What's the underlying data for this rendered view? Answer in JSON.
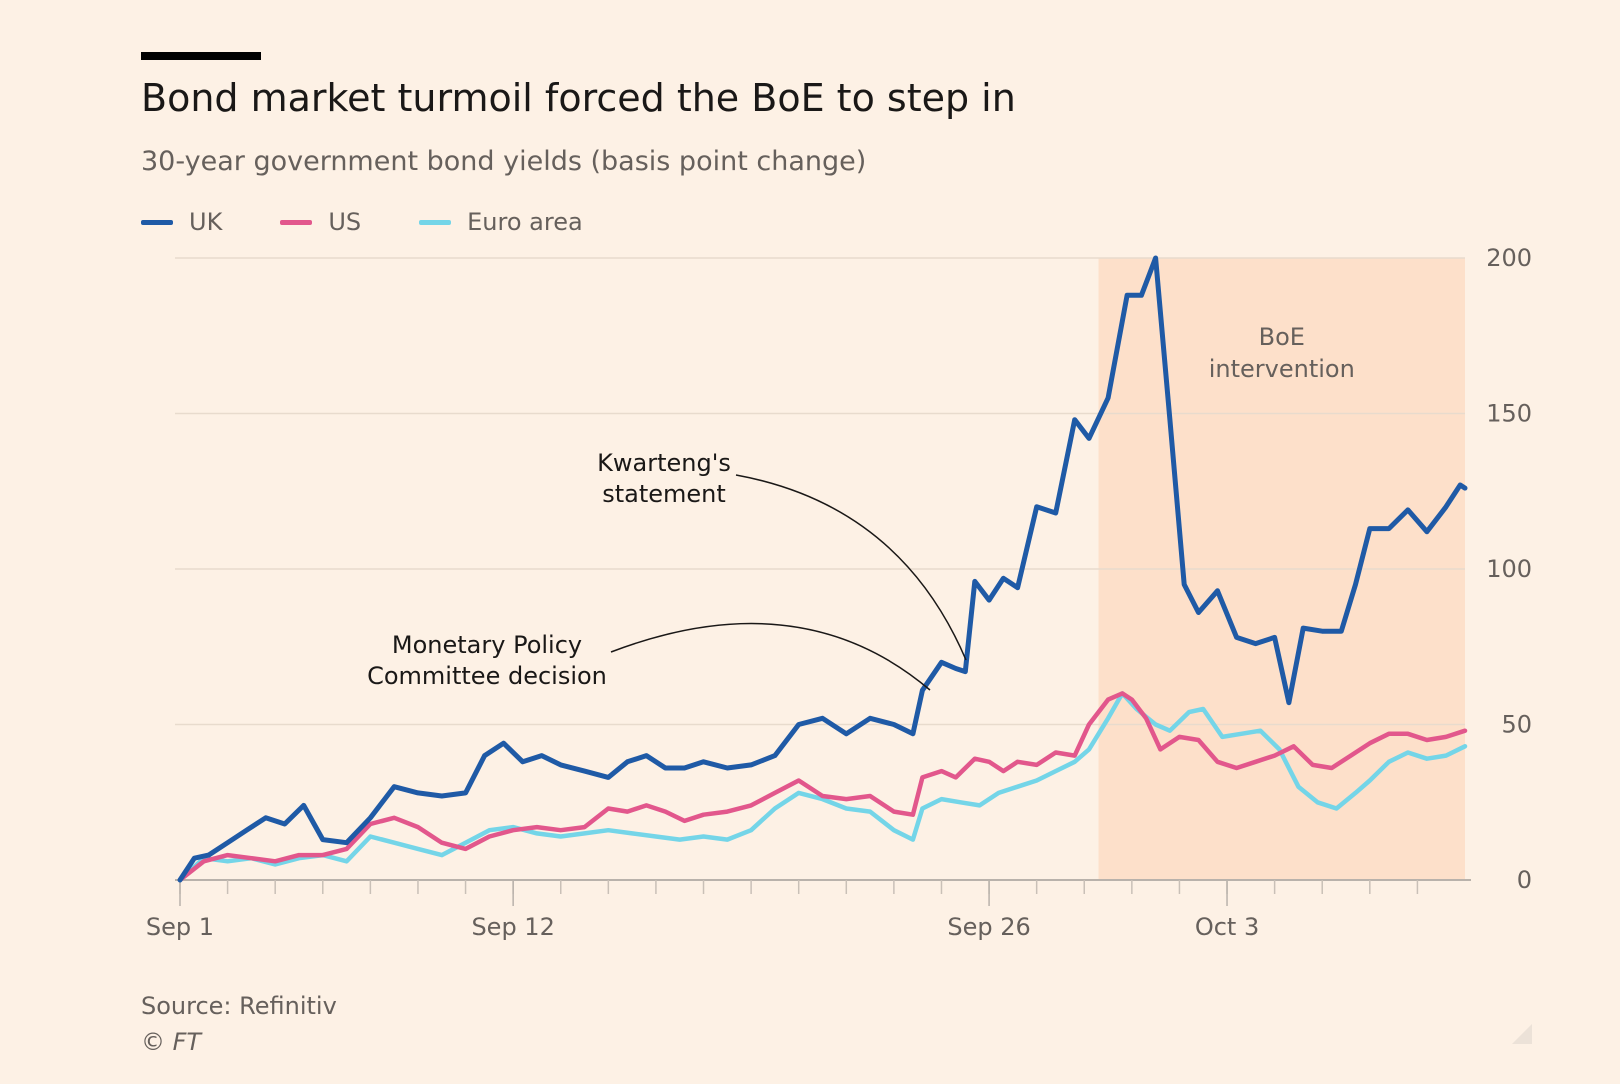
{
  "header": {
    "title": "Bond market turmoil forced the BoE to step in",
    "subtitle": "30-year government bond yields (basis point change)"
  },
  "legend": [
    {
      "label": "UK",
      "color": "#1f5aa6"
    },
    {
      "label": "US",
      "color": "#e2578c"
    },
    {
      "label": "Euro area",
      "color": "#74d5e8"
    }
  ],
  "footer": {
    "source": "Source: Refinitiv",
    "copyright": "© FT"
  },
  "chart_data": {
    "type": "line",
    "x_unit": "trading days (Sep 1 = 0)",
    "xlim": [
      0,
      27
    ],
    "ylim": [
      0,
      200
    ],
    "yticks": [
      0,
      50,
      100,
      150,
      200
    ],
    "ytick_labels": [
      "0",
      "50",
      "100",
      "150",
      "200"
    ],
    "xticks": [
      {
        "label": "Sep 1",
        "x": 0
      },
      {
        "label": "Sep 12",
        "x": 7
      },
      {
        "label": "Sep 26",
        "x": 17
      },
      {
        "label": "Oct 3",
        "x": 22
      }
    ],
    "grid": true,
    "legend_position": "top-left",
    "shaded_region": {
      "x0": 19.3,
      "x1": 27,
      "label": [
        "BoE",
        "intervention"
      ],
      "color": "#fde0ca"
    },
    "annotations": [
      {
        "lines": [
          "Kwarteng's",
          "statement"
        ]
      },
      {
        "lines": [
          "Monetary Policy",
          "Committee decision"
        ]
      }
    ],
    "series": [
      {
        "name": "UK",
        "color": "#1f5aa6",
        "points": [
          [
            0,
            0
          ],
          [
            0.3,
            7
          ],
          [
            0.6,
            8
          ],
          [
            1,
            12
          ],
          [
            1.4,
            16
          ],
          [
            1.8,
            20
          ],
          [
            2.2,
            18
          ],
          [
            2.6,
            24
          ],
          [
            3,
            13
          ],
          [
            3.5,
            12
          ],
          [
            4,
            20
          ],
          [
            4.5,
            30
          ],
          [
            5,
            28
          ],
          [
            5.5,
            27
          ],
          [
            6,
            28
          ],
          [
            6.4,
            40
          ],
          [
            6.8,
            44
          ],
          [
            7.2,
            38
          ],
          [
            7.6,
            40
          ],
          [
            8,
            37
          ],
          [
            8.5,
            35
          ],
          [
            9,
            33
          ],
          [
            9.4,
            38
          ],
          [
            9.8,
            40
          ],
          [
            10.2,
            36
          ],
          [
            10.6,
            36
          ],
          [
            11,
            38
          ],
          [
            11.5,
            36
          ],
          [
            12,
            37
          ],
          [
            12.5,
            40
          ],
          [
            13,
            50
          ],
          [
            13.5,
            52
          ],
          [
            14,
            47
          ],
          [
            14.5,
            52
          ],
          [
            15,
            50
          ],
          [
            15.4,
            47
          ],
          [
            15.6,
            61
          ],
          [
            16,
            70
          ],
          [
            16.3,
            68
          ],
          [
            16.5,
            67
          ],
          [
            16.7,
            96
          ],
          [
            17,
            90
          ],
          [
            17.3,
            97
          ],
          [
            17.6,
            94
          ],
          [
            18,
            120
          ],
          [
            18.4,
            118
          ],
          [
            18.8,
            148
          ],
          [
            19.1,
            142
          ],
          [
            19.5,
            155
          ],
          [
            19.9,
            188
          ],
          [
            20.2,
            188
          ],
          [
            20.5,
            200
          ],
          [
            20.8,
            148
          ],
          [
            21.1,
            95
          ],
          [
            21.4,
            86
          ],
          [
            21.8,
            93
          ],
          [
            22.2,
            78
          ],
          [
            22.6,
            76
          ],
          [
            23,
            78
          ],
          [
            23.3,
            57
          ],
          [
            23.6,
            81
          ],
          [
            24,
            80
          ],
          [
            24.4,
            80
          ],
          [
            24.7,
            95
          ],
          [
            25,
            113
          ],
          [
            25.4,
            113
          ],
          [
            25.8,
            119
          ],
          [
            26.2,
            112
          ],
          [
            26.6,
            120
          ],
          [
            26.9,
            127
          ],
          [
            27,
            126
          ]
        ]
      },
      {
        "name": "US",
        "color": "#e2578c",
        "points": [
          [
            0,
            0
          ],
          [
            0.5,
            6
          ],
          [
            1,
            8
          ],
          [
            1.5,
            7
          ],
          [
            2,
            6
          ],
          [
            2.5,
            8
          ],
          [
            3,
            8
          ],
          [
            3.5,
            10
          ],
          [
            4,
            18
          ],
          [
            4.5,
            20
          ],
          [
            5,
            17
          ],
          [
            5.5,
            12
          ],
          [
            6,
            10
          ],
          [
            6.5,
            14
          ],
          [
            7,
            16
          ],
          [
            7.5,
            17
          ],
          [
            8,
            16
          ],
          [
            8.5,
            17
          ],
          [
            9,
            23
          ],
          [
            9.4,
            22
          ],
          [
            9.8,
            24
          ],
          [
            10.2,
            22
          ],
          [
            10.6,
            19
          ],
          [
            11,
            21
          ],
          [
            11.5,
            22
          ],
          [
            12,
            24
          ],
          [
            12.5,
            28
          ],
          [
            13,
            32
          ],
          [
            13.5,
            27
          ],
          [
            14,
            26
          ],
          [
            14.5,
            27
          ],
          [
            15,
            22
          ],
          [
            15.4,
            21
          ],
          [
            15.6,
            33
          ],
          [
            16,
            35
          ],
          [
            16.3,
            33
          ],
          [
            16.7,
            39
          ],
          [
            17,
            38
          ],
          [
            17.3,
            35
          ],
          [
            17.6,
            38
          ],
          [
            18,
            37
          ],
          [
            18.4,
            41
          ],
          [
            18.8,
            40
          ],
          [
            19.1,
            50
          ],
          [
            19.5,
            58
          ],
          [
            19.8,
            60
          ],
          [
            20,
            58
          ],
          [
            20.3,
            52
          ],
          [
            20.6,
            42
          ],
          [
            21,
            46
          ],
          [
            21.4,
            45
          ],
          [
            21.8,
            38
          ],
          [
            22.2,
            36
          ],
          [
            22.6,
            38
          ],
          [
            23,
            40
          ],
          [
            23.4,
            43
          ],
          [
            23.8,
            37
          ],
          [
            24.2,
            36
          ],
          [
            24.6,
            40
          ],
          [
            25,
            44
          ],
          [
            25.4,
            47
          ],
          [
            25.8,
            47
          ],
          [
            26.2,
            45
          ],
          [
            26.6,
            46
          ],
          [
            27,
            48
          ]
        ]
      },
      {
        "name": "Euro area",
        "color": "#74d5e8",
        "points": [
          [
            0,
            0
          ],
          [
            0.5,
            7
          ],
          [
            1,
            6
          ],
          [
            1.5,
            7
          ],
          [
            2,
            5
          ],
          [
            2.5,
            7
          ],
          [
            3,
            8
          ],
          [
            3.5,
            6
          ],
          [
            4,
            14
          ],
          [
            4.5,
            12
          ],
          [
            5,
            10
          ],
          [
            5.5,
            8
          ],
          [
            6,
            12
          ],
          [
            6.5,
            16
          ],
          [
            7,
            17
          ],
          [
            7.5,
            15
          ],
          [
            8,
            14
          ],
          [
            8.5,
            15
          ],
          [
            9,
            16
          ],
          [
            9.5,
            15
          ],
          [
            10,
            14
          ],
          [
            10.5,
            13
          ],
          [
            11,
            14
          ],
          [
            11.5,
            13
          ],
          [
            12,
            16
          ],
          [
            12.5,
            23
          ],
          [
            13,
            28
          ],
          [
            13.5,
            26
          ],
          [
            14,
            23
          ],
          [
            14.5,
            22
          ],
          [
            15,
            16
          ],
          [
            15.4,
            13
          ],
          [
            15.6,
            23
          ],
          [
            16,
            26
          ],
          [
            16.4,
            25
          ],
          [
            16.8,
            24
          ],
          [
            17.2,
            28
          ],
          [
            17.6,
            30
          ],
          [
            18,
            32
          ],
          [
            18.4,
            35
          ],
          [
            18.8,
            38
          ],
          [
            19.1,
            42
          ],
          [
            19.5,
            52
          ],
          [
            19.8,
            60
          ],
          [
            20.1,
            55
          ],
          [
            20.5,
            50
          ],
          [
            20.8,
            48
          ],
          [
            21.2,
            54
          ],
          [
            21.5,
            55
          ],
          [
            21.9,
            46
          ],
          [
            22.3,
            47
          ],
          [
            22.7,
            48
          ],
          [
            23.1,
            42
          ],
          [
            23.5,
            30
          ],
          [
            23.9,
            25
          ],
          [
            24.3,
            23
          ],
          [
            24.7,
            28
          ],
          [
            25,
            32
          ],
          [
            25.4,
            38
          ],
          [
            25.8,
            41
          ],
          [
            26.2,
            39
          ],
          [
            26.6,
            40
          ],
          [
            27,
            43
          ]
        ]
      }
    ]
  }
}
